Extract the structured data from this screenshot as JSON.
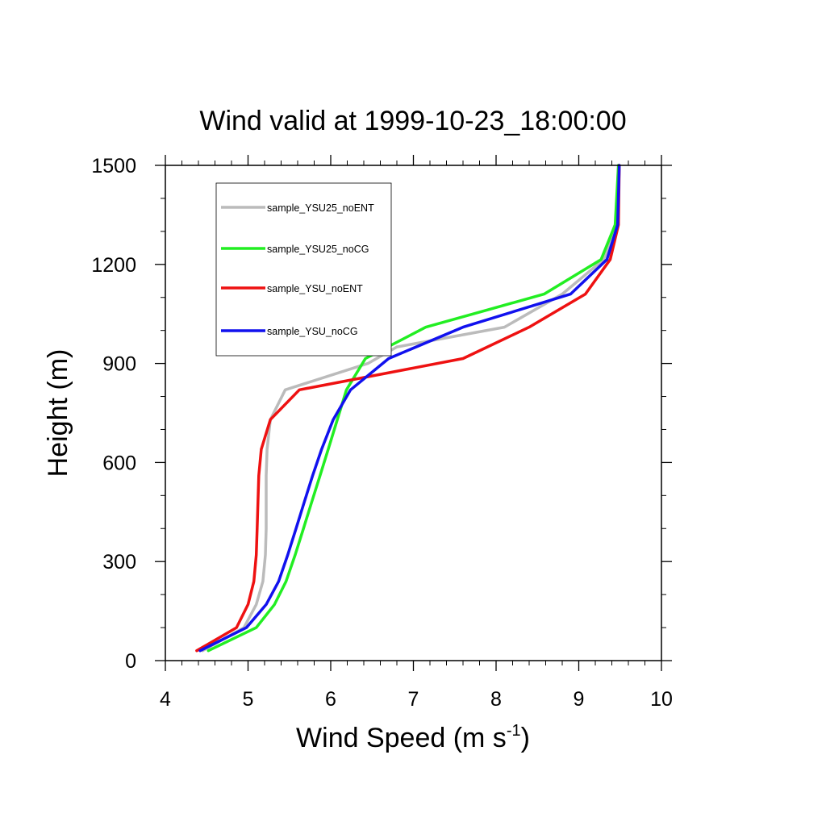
{
  "chart_data": {
    "type": "line",
    "title": "Wind valid at 1999-10-23_18:00:00",
    "xlabel": "Wind Speed (m s",
    "xlabel_superscript": "-1",
    "xlabel_suffix": ")",
    "ylabel": "Height (m)",
    "xlim": [
      4,
      10
    ],
    "ylim": [
      0,
      1500
    ],
    "x_major_ticks": [
      4,
      5,
      6,
      7,
      8,
      9,
      10
    ],
    "x_tick_labels": [
      "4",
      "5",
      "6",
      "7",
      "8",
      "9",
      "10"
    ],
    "y_major_ticks": [
      0,
      300,
      600,
      900,
      1200,
      1500
    ],
    "y_tick_labels": [
      "0",
      "300",
      "600",
      "900",
      "1200",
      "1500"
    ],
    "x_minor_step": 0.2,
    "y_minor_step": 100,
    "grid": false,
    "legend_position": "top-left",
    "series": [
      {
        "name": "sample_YSU25_noENT",
        "color": "#bbbbbb",
        "points": [
          [
            4.45,
            30
          ],
          [
            4.95,
            100
          ],
          [
            5.1,
            170
          ],
          [
            5.18,
            240
          ],
          [
            5.21,
            320
          ],
          [
            5.22,
            400
          ],
          [
            5.22,
            480
          ],
          [
            5.22,
            560
          ],
          [
            5.23,
            640
          ],
          [
            5.27,
            730
          ],
          [
            5.45,
            820
          ],
          [
            6.45,
            900
          ],
          [
            6.8,
            950
          ],
          [
            8.1,
            1010
          ],
          [
            8.8,
            1110
          ],
          [
            9.3,
            1215
          ],
          [
            9.45,
            1320
          ],
          [
            9.48,
            1500
          ]
        ]
      },
      {
        "name": "sample_YSU25_noCG",
        "color": "#22ee22",
        "points": [
          [
            4.52,
            30
          ],
          [
            5.1,
            100
          ],
          [
            5.32,
            170
          ],
          [
            5.46,
            240
          ],
          [
            5.57,
            320
          ],
          [
            5.67,
            400
          ],
          [
            5.77,
            480
          ],
          [
            5.87,
            560
          ],
          [
            5.97,
            640
          ],
          [
            6.08,
            730
          ],
          [
            6.19,
            820
          ],
          [
            6.42,
            915
          ],
          [
            7.15,
            1010
          ],
          [
            8.58,
            1110
          ],
          [
            9.27,
            1215
          ],
          [
            9.44,
            1320
          ],
          [
            9.48,
            1500
          ]
        ]
      },
      {
        "name": "sample_YSU_noENT",
        "color": "#ee1111",
        "points": [
          [
            4.38,
            30
          ],
          [
            4.86,
            100
          ],
          [
            5.0,
            170
          ],
          [
            5.07,
            240
          ],
          [
            5.1,
            320
          ],
          [
            5.11,
            400
          ],
          [
            5.12,
            480
          ],
          [
            5.13,
            560
          ],
          [
            5.16,
            640
          ],
          [
            5.27,
            730
          ],
          [
            5.62,
            820
          ],
          [
            7.6,
            915
          ],
          [
            8.4,
            1010
          ],
          [
            9.08,
            1110
          ],
          [
            9.38,
            1215
          ],
          [
            9.48,
            1320
          ],
          [
            9.49,
            1500
          ]
        ]
      },
      {
        "name": "sample_YSU_noCG",
        "color": "#1111ee",
        "points": [
          [
            4.42,
            30
          ],
          [
            4.98,
            100
          ],
          [
            5.22,
            170
          ],
          [
            5.37,
            240
          ],
          [
            5.48,
            320
          ],
          [
            5.58,
            400
          ],
          [
            5.68,
            480
          ],
          [
            5.78,
            560
          ],
          [
            5.89,
            640
          ],
          [
            6.03,
            730
          ],
          [
            6.24,
            820
          ],
          [
            6.7,
            915
          ],
          [
            7.6,
            1010
          ],
          [
            8.9,
            1110
          ],
          [
            9.34,
            1215
          ],
          [
            9.47,
            1320
          ],
          [
            9.49,
            1500
          ]
        ]
      }
    ]
  }
}
